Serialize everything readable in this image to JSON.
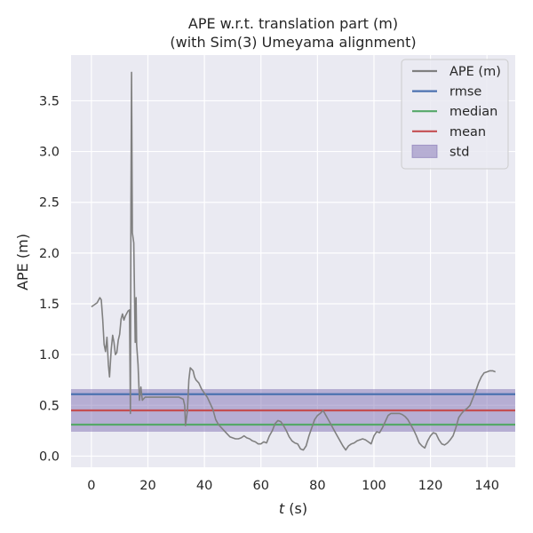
{
  "colors": {
    "background": "#eaeaf2",
    "grid": "#ffffff",
    "ape": "#808080",
    "rmse": "#4c72b0",
    "median": "#55a868",
    "mean": "#c44e52",
    "std": "#8172b3"
  },
  "chart_data": {
    "type": "line",
    "title": "APE w.r.t. translation part (m)",
    "subtitle": "(with Sim(3) Umeyama alignment)",
    "xlabel_italic": "t",
    "xlabel_rest": " (s)",
    "ylabel": "APE (m)",
    "xlim": [
      -7.2,
      150
    ],
    "ylim": [
      -0.11,
      3.95
    ],
    "grid": true,
    "legend_position": "top-right",
    "x_ticks": [
      0,
      20,
      40,
      60,
      80,
      100,
      120,
      140
    ],
    "x_tick_labels": [
      "0",
      "20",
      "40",
      "60",
      "80",
      "100",
      "120",
      "140"
    ],
    "y_ticks": [
      0.0,
      0.5,
      1.0,
      1.5,
      2.0,
      2.5,
      3.0,
      3.5
    ],
    "y_tick_labels": [
      "0.0",
      "0.5",
      "1.0",
      "1.5",
      "2.0",
      "2.5",
      "3.0",
      "3.5"
    ],
    "stats": {
      "rmse": 0.61,
      "median": 0.31,
      "mean": 0.45,
      "std_low": 0.24,
      "std_high": 0.66
    },
    "legend": [
      {
        "label": "APE (m)",
        "kind": "line",
        "key": "ape"
      },
      {
        "label": "rmse",
        "kind": "line",
        "key": "rmse"
      },
      {
        "label": "median",
        "kind": "line",
        "key": "median"
      },
      {
        "label": "mean",
        "kind": "line",
        "key": "mean"
      },
      {
        "label": "std",
        "kind": "patch",
        "key": "std"
      }
    ],
    "series": [
      {
        "name": "APE (m)",
        "points": [
          [
            0,
            1.47
          ],
          [
            1,
            1.49
          ],
          [
            2,
            1.51
          ],
          [
            3,
            1.56
          ],
          [
            3.5,
            1.54
          ],
          [
            4,
            1.35
          ],
          [
            4.5,
            1.1
          ],
          [
            5,
            1.03
          ],
          [
            5.5,
            1.17
          ],
          [
            6,
            0.9
          ],
          [
            6.4,
            0.78
          ],
          [
            7,
            1.05
          ],
          [
            7.5,
            1.19
          ],
          [
            8,
            1.12
          ],
          [
            8.5,
            1.0
          ],
          [
            9,
            1.02
          ],
          [
            9.5,
            1.14
          ],
          [
            10,
            1.2
          ],
          [
            10.5,
            1.35
          ],
          [
            11,
            1.4
          ],
          [
            11.5,
            1.34
          ],
          [
            12,
            1.38
          ],
          [
            13,
            1.43
          ],
          [
            13.5,
            1.44
          ],
          [
            13.8,
            0.42
          ],
          [
            14,
            2.5
          ],
          [
            14.2,
            3.78
          ],
          [
            14.5,
            2.2
          ],
          [
            15,
            2.1
          ],
          [
            15.5,
            1.12
          ],
          [
            15.8,
            1.56
          ],
          [
            16,
            1.1
          ],
          [
            16.5,
            0.9
          ],
          [
            17,
            0.55
          ],
          [
            17.5,
            0.68
          ],
          [
            18,
            0.55
          ],
          [
            19,
            0.58
          ],
          [
            20,
            0.58
          ],
          [
            22,
            0.58
          ],
          [
            25,
            0.58
          ],
          [
            28,
            0.58
          ],
          [
            31,
            0.58
          ],
          [
            32.5,
            0.56
          ],
          [
            33,
            0.5
          ],
          [
            33.3,
            0.3
          ],
          [
            34,
            0.45
          ],
          [
            34.5,
            0.75
          ],
          [
            35,
            0.87
          ],
          [
            36,
            0.84
          ],
          [
            36.5,
            0.78
          ],
          [
            37,
            0.75
          ],
          [
            38,
            0.72
          ],
          [
            39,
            0.66
          ],
          [
            40,
            0.62
          ],
          [
            41,
            0.58
          ],
          [
            42,
            0.52
          ],
          [
            43,
            0.46
          ],
          [
            44,
            0.36
          ],
          [
            45,
            0.31
          ],
          [
            46,
            0.28
          ],
          [
            47,
            0.25
          ],
          [
            48,
            0.22
          ],
          [
            49,
            0.19
          ],
          [
            50,
            0.18
          ],
          [
            51,
            0.17
          ],
          [
            52,
            0.17
          ],
          [
            53,
            0.18
          ],
          [
            54,
            0.2
          ],
          [
            55,
            0.18
          ],
          [
            56,
            0.17
          ],
          [
            57,
            0.15
          ],
          [
            58,
            0.14
          ],
          [
            59,
            0.12
          ],
          [
            60,
            0.12
          ],
          [
            61,
            0.14
          ],
          [
            62,
            0.13
          ],
          [
            63,
            0.2
          ],
          [
            64,
            0.25
          ],
          [
            65,
            0.32
          ],
          [
            66,
            0.35
          ],
          [
            67,
            0.34
          ],
          [
            68,
            0.3
          ],
          [
            69,
            0.25
          ],
          [
            70,
            0.19
          ],
          [
            71,
            0.15
          ],
          [
            72,
            0.13
          ],
          [
            73,
            0.12
          ],
          [
            74,
            0.07
          ],
          [
            75,
            0.06
          ],
          [
            76,
            0.1
          ],
          [
            77,
            0.2
          ],
          [
            78,
            0.28
          ],
          [
            79,
            0.36
          ],
          [
            80,
            0.4
          ],
          [
            81,
            0.42
          ],
          [
            82,
            0.45
          ],
          [
            83,
            0.4
          ],
          [
            84,
            0.35
          ],
          [
            85,
            0.3
          ],
          [
            86,
            0.25
          ],
          [
            87,
            0.2
          ],
          [
            88,
            0.15
          ],
          [
            89,
            0.1
          ],
          [
            90,
            0.06
          ],
          [
            91,
            0.1
          ],
          [
            92,
            0.12
          ],
          [
            93,
            0.13
          ],
          [
            94,
            0.15
          ],
          [
            95,
            0.16
          ],
          [
            96,
            0.17
          ],
          [
            97,
            0.16
          ],
          [
            98,
            0.14
          ],
          [
            99,
            0.12
          ],
          [
            100,
            0.2
          ],
          [
            101,
            0.24
          ],
          [
            102,
            0.23
          ],
          [
            103,
            0.28
          ],
          [
            104,
            0.34
          ],
          [
            105,
            0.4
          ],
          [
            106,
            0.42
          ],
          [
            107,
            0.42
          ],
          [
            108,
            0.42
          ],
          [
            109,
            0.42
          ],
          [
            110,
            0.41
          ],
          [
            111,
            0.39
          ],
          [
            112,
            0.36
          ],
          [
            113,
            0.31
          ],
          [
            114,
            0.26
          ],
          [
            115,
            0.2
          ],
          [
            116,
            0.13
          ],
          [
            117,
            0.1
          ],
          [
            118,
            0.08
          ],
          [
            119,
            0.15
          ],
          [
            120,
            0.2
          ],
          [
            121,
            0.23
          ],
          [
            122,
            0.22
          ],
          [
            123,
            0.16
          ],
          [
            124,
            0.12
          ],
          [
            125,
            0.11
          ],
          [
            126,
            0.13
          ],
          [
            127,
            0.16
          ],
          [
            128,
            0.2
          ],
          [
            129,
            0.28
          ],
          [
            130,
            0.38
          ],
          [
            131,
            0.42
          ],
          [
            132,
            0.45
          ],
          [
            133,
            0.47
          ],
          [
            134,
            0.5
          ],
          [
            135,
            0.57
          ],
          [
            136,
            0.64
          ],
          [
            137,
            0.72
          ],
          [
            138,
            0.78
          ],
          [
            139,
            0.82
          ],
          [
            140,
            0.83
          ],
          [
            141,
            0.84
          ],
          [
            142,
            0.84
          ],
          [
            143,
            0.83
          ]
        ]
      }
    ]
  }
}
